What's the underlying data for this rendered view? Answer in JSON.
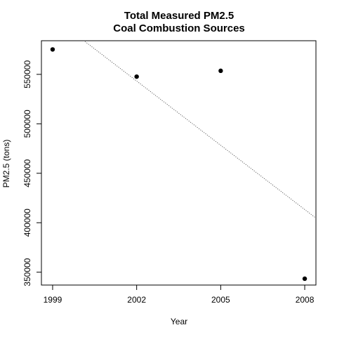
{
  "chart_data": {
    "type": "scatter",
    "title": "Total Measured PM2.5",
    "subtitle": "Coal Combustion Sources",
    "xlabel": "Year",
    "ylabel": "PM2.5 (tons)",
    "xlim": [
      1998.6,
      2008.4
    ],
    "ylim": [
      337000,
      584000
    ],
    "x_ticks": [
      1999,
      2002,
      2005,
      2008
    ],
    "y_ticks": [
      350000,
      400000,
      450000,
      500000,
      550000
    ],
    "series": [
      {
        "x": [
          1999,
          2002,
          2005,
          2008
        ],
        "y": [
          575200,
          547700,
          553600,
          343400
        ]
      }
    ],
    "trendline": {
      "style": "dotted",
      "intercept_at_1999": 608200,
      "slope_per_year": -21650
    },
    "colors": {
      "points": "#000000",
      "trendline": "#555555",
      "axes": "#000000"
    }
  }
}
